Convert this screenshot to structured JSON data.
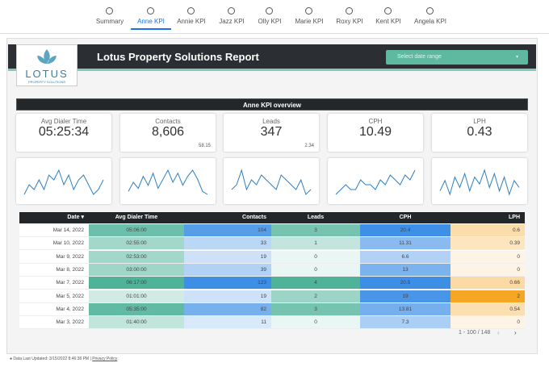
{
  "tabs": [
    "Summary",
    "Anne KPI",
    "Annie KPI",
    "Jazz KPI",
    "Olly KPI",
    "Marie KPI",
    "Roxy KPI",
    "Kent KPI",
    "Angela KPI"
  ],
  "header": {
    "logo": "LOTUS",
    "logo_sub": "PROPERTY SOLUTIONS",
    "title": "Lotus Property Solutions Report",
    "date_select": "Select date range"
  },
  "section_title": "Anne KPI overview",
  "kpis": [
    {
      "label": "Avg Dialer Time",
      "value": "05:25:34"
    },
    {
      "label": "Contacts",
      "value": "8,606",
      "sub": "58.15"
    },
    {
      "label": "Leads",
      "value": "347",
      "sub": "2.34"
    },
    {
      "label": "CPH",
      "value": "10.49"
    },
    {
      "label": "LPH",
      "value": "0.43"
    }
  ],
  "sparklines": [
    [
      5,
      7,
      6,
      8,
      6,
      9,
      8,
      10,
      7,
      9,
      6,
      8,
      9,
      7,
      5,
      6,
      8
    ],
    [
      3,
      6,
      4,
      8,
      5,
      9,
      4,
      7,
      10,
      6,
      9,
      5,
      8,
      10,
      7,
      3,
      2
    ],
    [
      3,
      4,
      7,
      3,
      5,
      4,
      6,
      5,
      4,
      3,
      6,
      5,
      4,
      3,
      5,
      2,
      3
    ],
    [
      2,
      3,
      4,
      3,
      3,
      5,
      4,
      4,
      3,
      5,
      4,
      6,
      5,
      4,
      6,
      5,
      7
    ],
    [
      4,
      7,
      3,
      8,
      5,
      9,
      4,
      8,
      6,
      10,
      5,
      9,
      4,
      8,
      3,
      7,
      5
    ]
  ],
  "table": {
    "columns": [
      "Date",
      "Avg Dialer Time",
      "Contacts",
      "Leads",
      "CPH",
      "LPH"
    ],
    "rows": [
      [
        "Mar 14, 2022",
        "05:06:00",
        "104",
        "3",
        "20.4",
        "0.6"
      ],
      [
        "Mar 10, 2022",
        "02:55:00",
        "33",
        "1",
        "11.31",
        "0.39"
      ],
      [
        "Mar 9, 2022",
        "02:53:00",
        "19",
        "0",
        "6.6",
        "0"
      ],
      [
        "Mar 8, 2022",
        "03:00:00",
        "39",
        "0",
        "13",
        "0"
      ],
      [
        "Mar 7, 2022",
        "06:17:00",
        "123",
        "4",
        "20.5",
        "0.66"
      ],
      [
        "Mar 5, 2022",
        "01:01:00",
        "19",
        "2",
        "19",
        "2"
      ],
      [
        "Mar 4, 2022",
        "05:35:00",
        "82",
        "3",
        "13.81",
        "0.54"
      ],
      [
        "Mar 3, 2022",
        "01:40:00",
        "11",
        "0",
        "7.3",
        "0"
      ]
    ]
  },
  "pagination": "1 - 100 / 148",
  "footer": {
    "updated": "Data Last Updated: 3/15/2022 8:46:38 PM",
    "privacy": "Privacy Policy"
  }
}
